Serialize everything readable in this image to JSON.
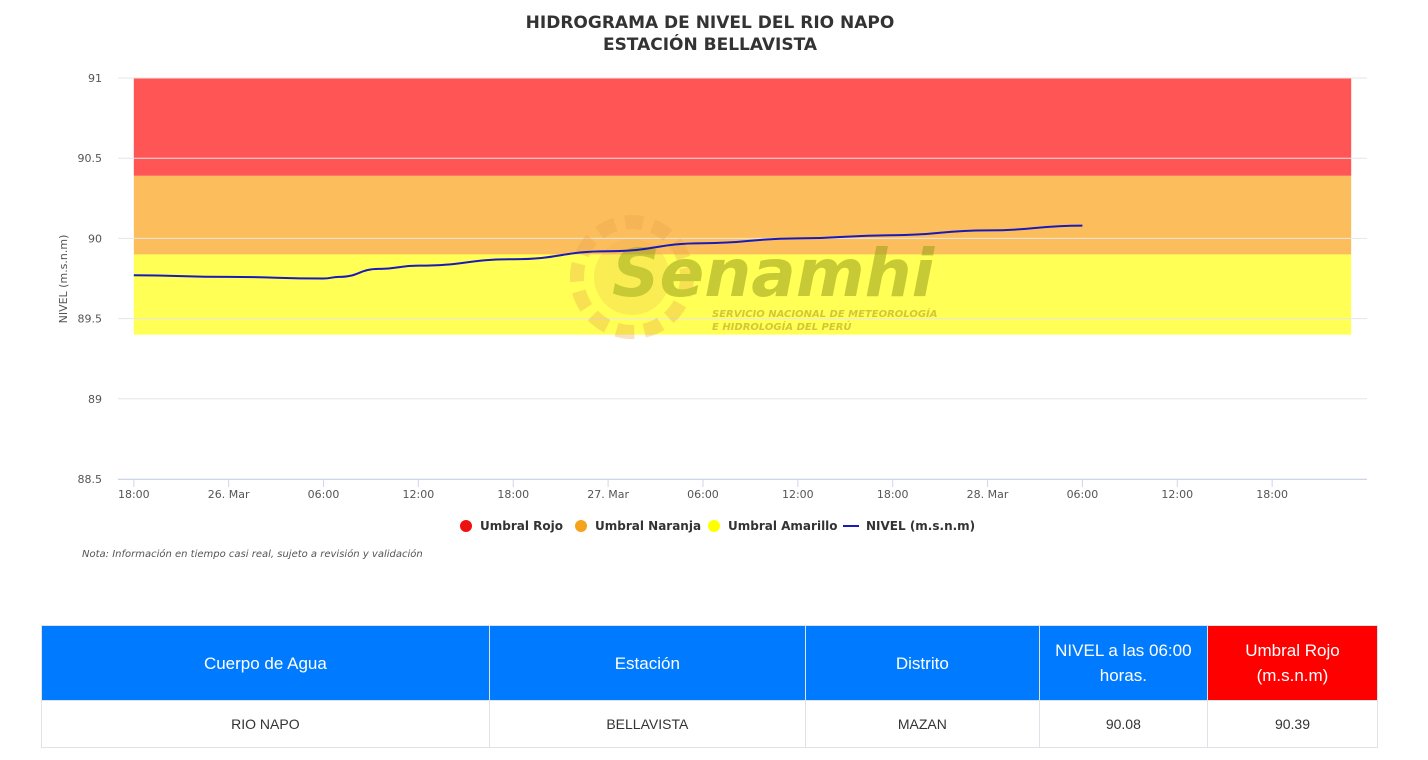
{
  "chart_data": {
    "type": "line",
    "title": [
      "HIDROGRAMA DE NIVEL DEL RIO NAPO",
      "ESTACIÓN BELLAVISTA"
    ],
    "ylabel": "NIVEL (m.s.n.m)",
    "ylim": [
      88.5,
      91
    ],
    "yticks": [
      "91",
      "90.5",
      "90",
      "89.5",
      "89",
      "88.5"
    ],
    "xlim": [
      "2024-03-25T17:00",
      "2024-03-29T00:00"
    ],
    "xticks": [
      {
        "t": "2024-03-25T18:00",
        "label": "18:00"
      },
      {
        "t": "2024-03-26T00:00",
        "label": "26. Mar"
      },
      {
        "t": "2024-03-26T06:00",
        "label": "06:00"
      },
      {
        "t": "2024-03-26T12:00",
        "label": "12:00"
      },
      {
        "t": "2024-03-26T18:00",
        "label": "18:00"
      },
      {
        "t": "2024-03-27T00:00",
        "label": "27. Mar"
      },
      {
        "t": "2024-03-27T06:00",
        "label": "06:00"
      },
      {
        "t": "2024-03-27T12:00",
        "label": "12:00"
      },
      {
        "t": "2024-03-27T18:00",
        "label": "18:00"
      },
      {
        "t": "2024-03-28T00:00",
        "label": "28. Mar"
      },
      {
        "t": "2024-03-28T06:00",
        "label": "06:00"
      },
      {
        "t": "2024-03-28T12:00",
        "label": "12:00"
      },
      {
        "t": "2024-03-28T18:00",
        "label": "18:00"
      }
    ],
    "bands": [
      {
        "name": "Umbral Rojo",
        "from": 90.39,
        "to": 91.0,
        "color": "#ff5555",
        "legend_color": "#ee1111"
      },
      {
        "name": "Umbral Naranja",
        "from": 89.9,
        "to": 90.39,
        "color": "#fcbe5c",
        "legend_color": "#f5a31a"
      },
      {
        "name": "Umbral Amarillo",
        "from": 89.4,
        "to": 89.9,
        "color": "#ffff55",
        "legend_color": "#ffff00"
      }
    ],
    "band_x": [
      "2024-03-25T18:00",
      "2024-03-28T23:00"
    ],
    "series": [
      {
        "name": "NIVEL (m.s.n.m)",
        "color": "#1a1ab8",
        "x": [
          "2024-03-25T18:00",
          "2024-03-26T00:00",
          "2024-03-26T06:00",
          "2024-03-26T07:00",
          "2024-03-26T09:30",
          "2024-03-26T12:00",
          "2024-03-26T18:00",
          "2024-03-27T00:00",
          "2024-03-27T06:00",
          "2024-03-27T12:00",
          "2024-03-27T18:00",
          "2024-03-28T00:00",
          "2024-03-28T06:00"
        ],
        "y": [
          89.77,
          89.76,
          89.75,
          89.76,
          89.81,
          89.83,
          89.87,
          89.92,
          89.97,
          90.0,
          90.02,
          90.05,
          90.08
        ]
      }
    ],
    "grid": true,
    "legend_position": "bottom-center"
  },
  "watermark": {
    "logo": "Senamhi",
    "sub": [
      "SERVICIO NACIONAL DE METEOROLOGÍA",
      "E HIDROLOGÍA DEL PERÚ"
    ]
  },
  "note": "Nota: Información en tiempo casi real, sujeto a revisión y validación",
  "table": {
    "headers": [
      "Cuerpo de Agua",
      "Estación",
      "Distrito",
      "NIVEL a las 06:00 horas.",
      "Umbral Rojo (m.s.n.m)"
    ],
    "header_colors": [
      "#007bff",
      "#007bff",
      "#007bff",
      "#007bff",
      "#ff0000"
    ],
    "row": [
      "RIO NAPO",
      "BELLAVISTA",
      "MAZAN",
      "90.08",
      "90.39"
    ]
  }
}
